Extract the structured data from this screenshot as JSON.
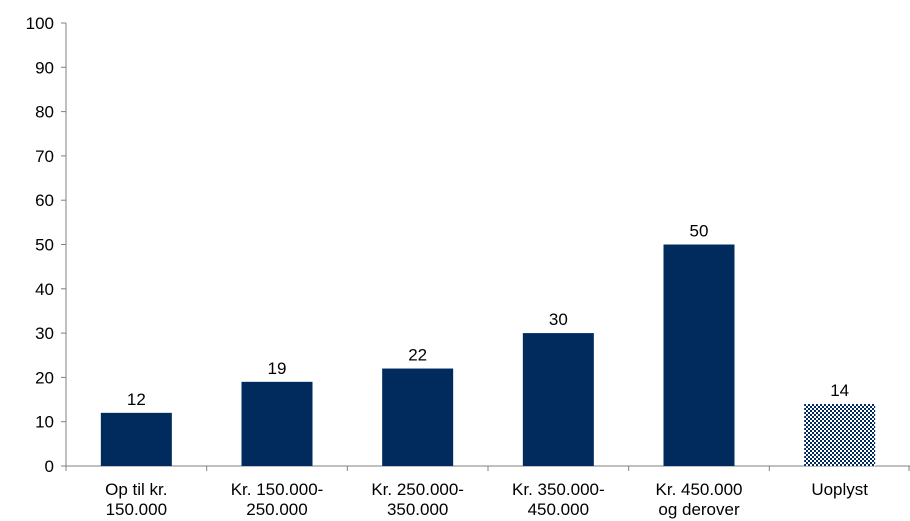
{
  "chart_data": {
    "type": "bar",
    "categories": [
      [
        "Op til kr.",
        "150.000"
      ],
      [
        "Kr. 150.000-",
        "250.000"
      ],
      [
        "Kr. 250.000-",
        "350.000"
      ],
      [
        "Kr. 350.000-",
        "450.000"
      ],
      [
        "Kr. 450.000",
        "og derover"
      ],
      [
        "Uoplyst"
      ]
    ],
    "values": [
      12,
      19,
      22,
      30,
      50,
      14
    ],
    "value_labels": [
      "12",
      "19",
      "22",
      "30",
      "50",
      "14"
    ],
    "patterned_categories": [
      5
    ],
    "title": "",
    "xlabel": "",
    "ylabel": "",
    "ylim": [
      0,
      100
    ],
    "yticks": [
      0,
      10,
      20,
      30,
      40,
      50,
      60,
      70,
      80,
      90,
      100
    ],
    "grid": false,
    "legend": "none"
  },
  "colors": {
    "bar": "#002b5c",
    "axis": "#808080",
    "pattern": "#002b5c"
  }
}
